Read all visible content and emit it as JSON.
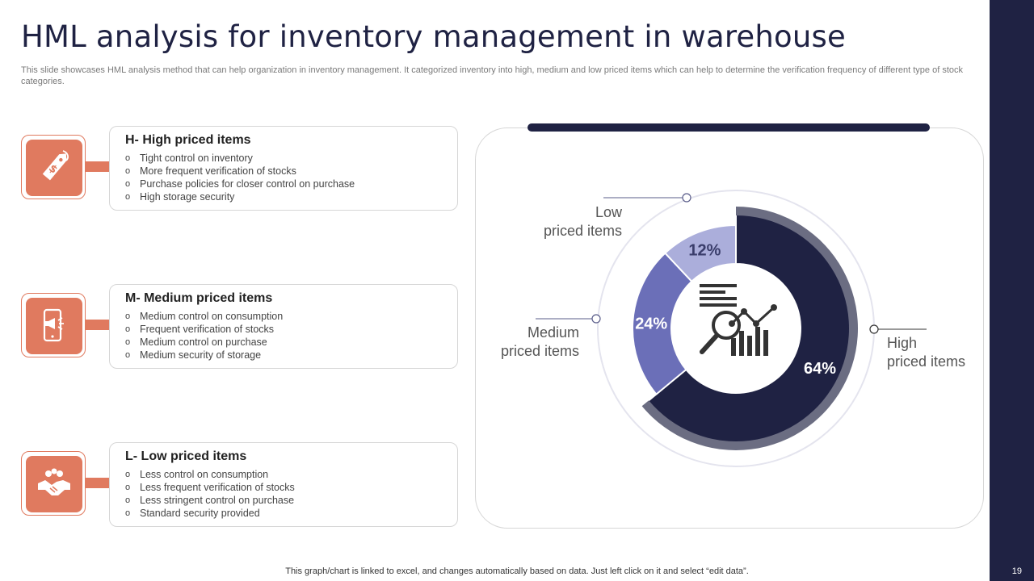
{
  "title": "HML analysis for inventory management in warehouse",
  "subtitle": "This slide showcases HML analysis method that can help organization in inventory management. It categorized inventory into high, medium and low priced items which can help to determine the verification frequency of different type of stock categories.",
  "items": [
    {
      "title": "H- High priced items",
      "icon": "price-tag-icon",
      "bullets": [
        "Tight control on inventory",
        "More frequent verification  of stocks",
        "Purchase policies for closer control on purchase",
        "High storage security"
      ]
    },
    {
      "title": "M- Medium priced items",
      "icon": "phone-megaphone-icon",
      "bullets": [
        "Medium control on consumption",
        "Frequent verification  of stocks",
        "Medium control on purchase",
        "Medium security of storage"
      ]
    },
    {
      "title": "L- Low priced items",
      "icon": "handshake-icon",
      "bullets": [
        "Less control on consumption",
        "Less frequent verification  of stocks",
        "Less stringent control on purchase",
        "Standard security provided"
      ]
    }
  ],
  "chart_data": {
    "type": "pie",
    "categories": [
      "High priced items",
      "Medium priced items",
      "Low priced items"
    ],
    "values": [
      64,
      24,
      12
    ],
    "value_labels": [
      "64%",
      "24%",
      "12%"
    ],
    "callout_lines": [
      [
        "High",
        "priced items"
      ],
      [
        "Medium",
        "priced items"
      ],
      [
        "Low",
        "priced items"
      ]
    ],
    "colors": [
      "#1f2243",
      "#6b6fb8",
      "#abaedb"
    ],
    "outer_ring_color": "#6b6d82",
    "center_icon": "analytics-magnifier-icon"
  },
  "footer": "This graph/chart is linked to excel,  and changes automatically based on data. Just left click on it and select “edit data”.",
  "page_number": "19",
  "colors": {
    "accent": "#e07a5f",
    "navy": "#1f2243"
  }
}
